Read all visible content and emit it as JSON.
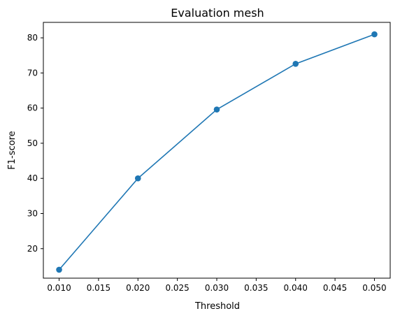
{
  "chart_data": {
    "type": "line",
    "title": "Evaluation mesh",
    "xlabel": "Threshold",
    "ylabel": "F1-score",
    "x": [
      0.01,
      0.02,
      0.03,
      0.04,
      0.05
    ],
    "series": [
      {
        "values": [
          14.0,
          40.0,
          59.6,
          72.6,
          81.0
        ],
        "color": "#1f77b4",
        "marker": "circle"
      }
    ],
    "xlim": [
      0.008,
      0.052
    ],
    "ylim": [
      11.6,
      84.4
    ],
    "xticks": [
      0.01,
      0.015,
      0.02,
      0.025,
      0.03,
      0.035,
      0.04,
      0.045,
      0.05
    ],
    "xtick_labels": [
      "0.010",
      "0.015",
      "0.020",
      "0.025",
      "0.030",
      "0.035",
      "0.040",
      "0.045",
      "0.050"
    ],
    "yticks": [
      20,
      30,
      40,
      50,
      60,
      70,
      80
    ],
    "ytick_labels": [
      "20",
      "30",
      "40",
      "50",
      "60",
      "70",
      "80"
    ],
    "grid": false
  }
}
